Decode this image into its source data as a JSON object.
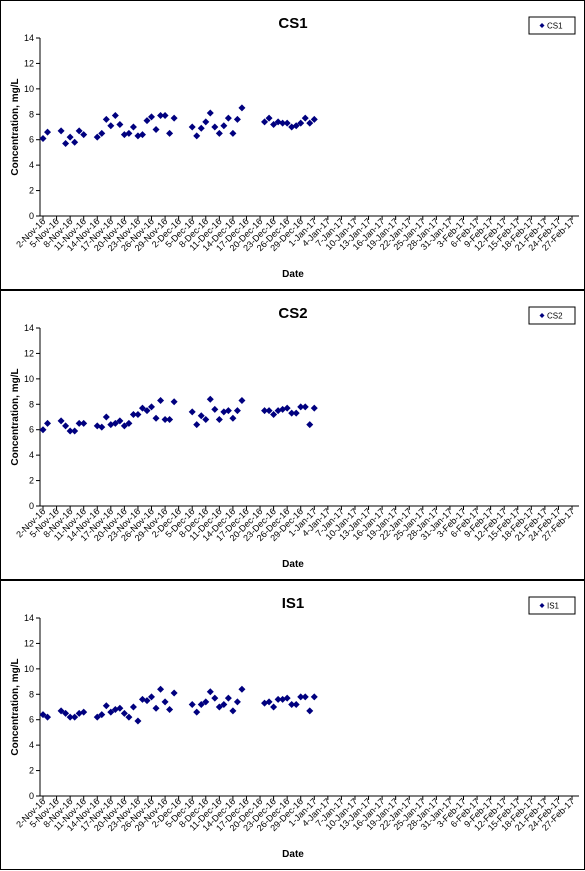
{
  "colors": {
    "marker": "#00007F",
    "axis": "#000000",
    "background": "#FFFFFF"
  },
  "chart_data": [
    {
      "type": "scatter",
      "title": "CS1",
      "xlabel": "Date",
      "ylabel": "Concentration, mg/L",
      "ylim": [
        0,
        14
      ],
      "y_ticks": [
        0,
        2,
        4,
        6,
        8,
        10,
        12,
        14
      ],
      "x_ticks": [
        "2-Nov-16",
        "5-Nov-16",
        "8-Nov-16",
        "11-Nov-16",
        "14-Nov-16",
        "17-Nov-16",
        "20-Nov-16",
        "23-Nov-16",
        "26-Nov-16",
        "29-Nov-16",
        "2-Dec-16",
        "5-Dec-16",
        "8-Dec-16",
        "11-Dec-16",
        "14-Dec-16",
        "17-Dec-16",
        "20-Dec-16",
        "23-Dec-16",
        "26-Dec-16",
        "29-Dec-16",
        "1-Jan-17",
        "4-Jan-17",
        "7-Jan-17",
        "10-Jan-17",
        "13-Jan-17",
        "16-Jan-17",
        "19-Jan-17",
        "22-Jan-17",
        "25-Jan-17",
        "28-Jan-17",
        "31-Jan-17",
        "3-Feb-17",
        "6-Feb-17",
        "9-Feb-17",
        "12-Feb-17",
        "15-Feb-17",
        "18-Feb-17",
        "21-Feb-17",
        "24-Feb-17",
        "27-Feb-17"
      ],
      "grid": false,
      "legend_position": "top-right",
      "series": [
        {
          "name": "CS1",
          "marker": "diamond",
          "points": [
            [
              "2-Nov-16",
              6.1
            ],
            [
              "3-Nov-16",
              6.6
            ],
            [
              "6-Nov-16",
              6.7
            ],
            [
              "7-Nov-16",
              5.7
            ],
            [
              "8-Nov-16",
              6.2
            ],
            [
              "9-Nov-16",
              5.8
            ],
            [
              "10-Nov-16",
              6.7
            ],
            [
              "11-Nov-16",
              6.4
            ],
            [
              "14-Nov-16",
              6.2
            ],
            [
              "15-Nov-16",
              6.5
            ],
            [
              "16-Nov-16",
              7.6
            ],
            [
              "17-Nov-16",
              7.1
            ],
            [
              "18-Nov-16",
              7.9
            ],
            [
              "19-Nov-16",
              7.2
            ],
            [
              "20-Nov-16",
              6.4
            ],
            [
              "21-Nov-16",
              6.5
            ],
            [
              "22-Nov-16",
              7.0
            ],
            [
              "23-Nov-16",
              6.3
            ],
            [
              "24-Nov-16",
              6.4
            ],
            [
              "25-Nov-16",
              7.5
            ],
            [
              "26-Nov-16",
              7.8
            ],
            [
              "27-Nov-16",
              6.8
            ],
            [
              "28-Nov-16",
              7.9
            ],
            [
              "29-Nov-16",
              7.9
            ],
            [
              "30-Nov-16",
              6.5
            ],
            [
              "1-Dec-16",
              7.7
            ],
            [
              "5-Dec-16",
              7.0
            ],
            [
              "6-Dec-16",
              6.3
            ],
            [
              "7-Dec-16",
              6.9
            ],
            [
              "8-Dec-16",
              7.4
            ],
            [
              "9-Dec-16",
              8.1
            ],
            [
              "10-Dec-16",
              7.0
            ],
            [
              "11-Dec-16",
              6.5
            ],
            [
              "12-Dec-16",
              7.1
            ],
            [
              "13-Dec-16",
              7.7
            ],
            [
              "14-Dec-16",
              6.5
            ],
            [
              "15-Dec-16",
              7.6
            ],
            [
              "16-Dec-16",
              8.5
            ],
            [
              "21-Dec-16",
              7.4
            ],
            [
              "22-Dec-16",
              7.7
            ],
            [
              "23-Dec-16",
              7.2
            ],
            [
              "24-Dec-16",
              7.4
            ],
            [
              "25-Dec-16",
              7.3
            ],
            [
              "26-Dec-16",
              7.3
            ],
            [
              "27-Dec-16",
              7.0
            ],
            [
              "28-Dec-16",
              7.1
            ],
            [
              "29-Dec-16",
              7.3
            ],
            [
              "30-Dec-16",
              7.7
            ],
            [
              "31-Dec-16",
              7.3
            ],
            [
              "1-Jan-17",
              7.6
            ]
          ]
        }
      ]
    },
    {
      "type": "scatter",
      "title": "CS2",
      "xlabel": "Date",
      "ylabel": "Concentration, mg/L",
      "ylim": [
        0,
        14
      ],
      "y_ticks": [
        0,
        2,
        4,
        6,
        8,
        10,
        12,
        14
      ],
      "x_ticks": [
        "2-Nov-16",
        "5-Nov-16",
        "8-Nov-16",
        "11-Nov-16",
        "14-Nov-16",
        "17-Nov-16",
        "20-Nov-16",
        "23-Nov-16",
        "26-Nov-16",
        "29-Nov-16",
        "2-Dec-16",
        "5-Dec-16",
        "8-Dec-16",
        "11-Dec-16",
        "14-Dec-16",
        "17-Dec-16",
        "20-Dec-16",
        "23-Dec-16",
        "26-Dec-16",
        "29-Dec-16",
        "1-Jan-17",
        "4-Jan-17",
        "7-Jan-17",
        "10-Jan-17",
        "13-Jan-17",
        "16-Jan-17",
        "19-Jan-17",
        "22-Jan-17",
        "25-Jan-17",
        "28-Jan-17",
        "31-Jan-17",
        "3-Feb-17",
        "6-Feb-17",
        "9-Feb-17",
        "12-Feb-17",
        "15-Feb-17",
        "18-Feb-17",
        "21-Feb-17",
        "24-Feb-17",
        "27-Feb-17"
      ],
      "grid": false,
      "legend_position": "top-right",
      "series": [
        {
          "name": "CS2",
          "marker": "diamond",
          "points": [
            [
              "2-Nov-16",
              6.0
            ],
            [
              "3-Nov-16",
              6.5
            ],
            [
              "6-Nov-16",
              6.7
            ],
            [
              "7-Nov-16",
              6.3
            ],
            [
              "8-Nov-16",
              5.9
            ],
            [
              "9-Nov-16",
              5.9
            ],
            [
              "10-Nov-16",
              6.5
            ],
            [
              "11-Nov-16",
              6.5
            ],
            [
              "14-Nov-16",
              6.3
            ],
            [
              "15-Nov-16",
              6.2
            ],
            [
              "16-Nov-16",
              7.0
            ],
            [
              "17-Nov-16",
              6.4
            ],
            [
              "18-Nov-16",
              6.5
            ],
            [
              "19-Nov-16",
              6.7
            ],
            [
              "20-Nov-16",
              6.3
            ],
            [
              "21-Nov-16",
              6.5
            ],
            [
              "22-Nov-16",
              7.2
            ],
            [
              "23-Nov-16",
              7.2
            ],
            [
              "24-Nov-16",
              7.7
            ],
            [
              "25-Nov-16",
              7.5
            ],
            [
              "26-Nov-16",
              7.8
            ],
            [
              "27-Nov-16",
              6.9
            ],
            [
              "28-Nov-16",
              8.3
            ],
            [
              "29-Nov-16",
              6.8
            ],
            [
              "30-Nov-16",
              6.8
            ],
            [
              "1-Dec-16",
              8.2
            ],
            [
              "5-Dec-16",
              7.4
            ],
            [
              "6-Dec-16",
              6.4
            ],
            [
              "7-Dec-16",
              7.1
            ],
            [
              "8-Dec-16",
              6.8
            ],
            [
              "9-Dec-16",
              8.4
            ],
            [
              "10-Dec-16",
              7.6
            ],
            [
              "11-Dec-16",
              6.8
            ],
            [
              "12-Dec-16",
              7.4
            ],
            [
              "13-Dec-16",
              7.5
            ],
            [
              "14-Dec-16",
              6.9
            ],
            [
              "15-Dec-16",
              7.5
            ],
            [
              "16-Dec-16",
              8.3
            ],
            [
              "21-Dec-16",
              7.5
            ],
            [
              "22-Dec-16",
              7.5
            ],
            [
              "23-Dec-16",
              7.2
            ],
            [
              "24-Dec-16",
              7.5
            ],
            [
              "25-Dec-16",
              7.6
            ],
            [
              "26-Dec-16",
              7.7
            ],
            [
              "27-Dec-16",
              7.3
            ],
            [
              "28-Dec-16",
              7.3
            ],
            [
              "29-Dec-16",
              7.8
            ],
            [
              "30-Dec-16",
              7.8
            ],
            [
              "31-Dec-16",
              6.4
            ],
            [
              "1-Jan-17",
              7.7
            ]
          ]
        }
      ]
    },
    {
      "type": "scatter",
      "title": "IS1",
      "xlabel": "Date",
      "ylabel": "Concentration, mg/L",
      "ylim": [
        0,
        14
      ],
      "y_ticks": [
        0,
        2,
        4,
        6,
        8,
        10,
        12,
        14
      ],
      "x_ticks": [
        "2-Nov-16",
        "5-Nov-16",
        "8-Nov-16",
        "11-Nov-16",
        "14-Nov-16",
        "17-Nov-16",
        "20-Nov-16",
        "23-Nov-16",
        "26-Nov-16",
        "29-Nov-16",
        "2-Dec-16",
        "5-Dec-16",
        "8-Dec-16",
        "11-Dec-16",
        "14-Dec-16",
        "17-Dec-16",
        "20-Dec-16",
        "23-Dec-16",
        "26-Dec-16",
        "29-Dec-16",
        "1-Jan-17",
        "4-Jan-17",
        "7-Jan-17",
        "10-Jan-17",
        "13-Jan-17",
        "16-Jan-17",
        "19-Jan-17",
        "22-Jan-17",
        "25-Jan-17",
        "28-Jan-17",
        "31-Jan-17",
        "3-Feb-17",
        "6-Feb-17",
        "9-Feb-17",
        "12-Feb-17",
        "15-Feb-17",
        "18-Feb-17",
        "21-Feb-17",
        "24-Feb-17",
        "27-Feb-17"
      ],
      "grid": false,
      "legend_position": "top-right",
      "series": [
        {
          "name": "IS1",
          "marker": "diamond",
          "points": [
            [
              "2-Nov-16",
              6.4
            ],
            [
              "3-Nov-16",
              6.2
            ],
            [
              "6-Nov-16",
              6.7
            ],
            [
              "7-Nov-16",
              6.5
            ],
            [
              "8-Nov-16",
              6.2
            ],
            [
              "9-Nov-16",
              6.2
            ],
            [
              "10-Nov-16",
              6.5
            ],
            [
              "11-Nov-16",
              6.6
            ],
            [
              "14-Nov-16",
              6.2
            ],
            [
              "15-Nov-16",
              6.4
            ],
            [
              "16-Nov-16",
              7.1
            ],
            [
              "17-Nov-16",
              6.6
            ],
            [
              "18-Nov-16",
              6.8
            ],
            [
              "19-Nov-16",
              6.9
            ],
            [
              "20-Nov-16",
              6.5
            ],
            [
              "21-Nov-16",
              6.2
            ],
            [
              "22-Nov-16",
              7.0
            ],
            [
              "23-Nov-16",
              5.9
            ],
            [
              "24-Nov-16",
              7.6
            ],
            [
              "25-Nov-16",
              7.5
            ],
            [
              "26-Nov-16",
              7.8
            ],
            [
              "27-Nov-16",
              6.9
            ],
            [
              "28-Nov-16",
              8.4
            ],
            [
              "29-Nov-16",
              7.4
            ],
            [
              "30-Nov-16",
              6.8
            ],
            [
              "1-Dec-16",
              8.1
            ],
            [
              "5-Dec-16",
              7.2
            ],
            [
              "6-Dec-16",
              6.6
            ],
            [
              "7-Dec-16",
              7.2
            ],
            [
              "8-Dec-16",
              7.4
            ],
            [
              "9-Dec-16",
              8.2
            ],
            [
              "10-Dec-16",
              7.7
            ],
            [
              "11-Dec-16",
              7.0
            ],
            [
              "12-Dec-16",
              7.2
            ],
            [
              "13-Dec-16",
              7.7
            ],
            [
              "14-Dec-16",
              6.7
            ],
            [
              "15-Dec-16",
              7.4
            ],
            [
              "16-Dec-16",
              8.4
            ],
            [
              "21-Dec-16",
              7.3
            ],
            [
              "22-Dec-16",
              7.4
            ],
            [
              "23-Dec-16",
              7.0
            ],
            [
              "24-Dec-16",
              7.6
            ],
            [
              "25-Dec-16",
              7.6
            ],
            [
              "26-Dec-16",
              7.7
            ],
            [
              "27-Dec-16",
              7.2
            ],
            [
              "28-Dec-16",
              7.2
            ],
            [
              "29-Dec-16",
              7.8
            ],
            [
              "30-Dec-16",
              7.8
            ],
            [
              "31-Dec-16",
              6.7
            ],
            [
              "1-Jan-17",
              7.8
            ]
          ]
        }
      ]
    }
  ]
}
